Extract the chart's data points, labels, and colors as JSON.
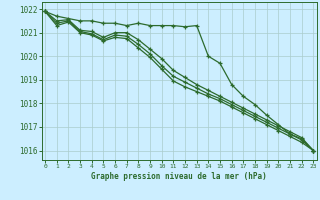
{
  "title": "Graphe pression niveau de la mer (hPa)",
  "background_color": "#cceeff",
  "grid_color": "#aacccc",
  "line_color": "#2d6b2d",
  "hours": [
    0,
    1,
    2,
    3,
    4,
    5,
    6,
    7,
    8,
    9,
    10,
    11,
    12,
    13,
    14,
    15,
    16,
    17,
    18,
    19,
    20,
    21,
    22,
    23
  ],
  "series": [
    [
      1021.9,
      1021.7,
      1021.6,
      1021.5,
      1021.5,
      1021.4,
      1021.4,
      1021.3,
      1021.4,
      1021.3,
      1021.3,
      1021.3,
      1021.25,
      1021.3,
      1020.0,
      1019.7,
      1018.8,
      1018.3,
      1017.95,
      1017.5,
      1017.1,
      1016.7,
      1016.5,
      1016.0
    ],
    [
      1021.9,
      1021.5,
      1021.55,
      1021.1,
      1021.05,
      1020.8,
      1021.0,
      1021.0,
      1020.7,
      1020.3,
      1019.9,
      1019.4,
      1019.1,
      1018.8,
      1018.55,
      1018.3,
      1018.05,
      1017.8,
      1017.55,
      1017.3,
      1017.05,
      1016.8,
      1016.55,
      1016.0
    ],
    [
      1021.9,
      1021.4,
      1021.5,
      1021.05,
      1020.95,
      1020.7,
      1020.9,
      1020.85,
      1020.5,
      1020.1,
      1019.6,
      1019.15,
      1018.9,
      1018.65,
      1018.4,
      1018.2,
      1017.95,
      1017.7,
      1017.45,
      1017.2,
      1016.95,
      1016.7,
      1016.45,
      1016.0
    ],
    [
      1021.9,
      1021.3,
      1021.45,
      1021.0,
      1020.9,
      1020.65,
      1020.8,
      1020.75,
      1020.35,
      1019.95,
      1019.45,
      1018.95,
      1018.7,
      1018.5,
      1018.3,
      1018.1,
      1017.85,
      1017.6,
      1017.35,
      1017.1,
      1016.85,
      1016.6,
      1016.35,
      1016.0
    ]
  ],
  "ylim": [
    1015.6,
    1022.3
  ],
  "yticks": [
    1016,
    1017,
    1018,
    1019,
    1020,
    1021,
    1022
  ],
  "xticks": [
    0,
    1,
    2,
    3,
    4,
    5,
    6,
    7,
    8,
    9,
    10,
    11,
    12,
    13,
    14,
    15,
    16,
    17,
    18,
    19,
    20,
    21,
    22,
    23
  ]
}
